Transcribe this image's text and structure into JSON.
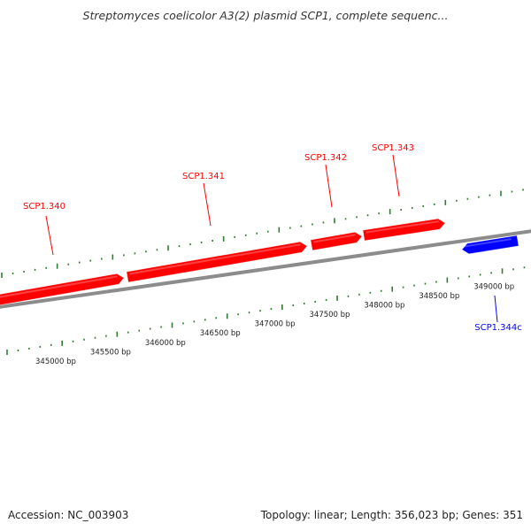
{
  "title": "Streptomyces coelicolor A3(2) plasmid SCP1, complete sequenc...",
  "footer": {
    "accession": "Accession: NC_003903",
    "summary": "Topology: linear; Length: 356,023 bp; Genes: 351"
  },
  "colors": {
    "forward_gene": "#ff0000",
    "reverse_gene": "#0000ff",
    "backbone": "#8c8c8c",
    "ticks": "#2e7d2e",
    "text": "#222222"
  },
  "scale_labels": [
    {
      "bp": 345000,
      "text": "345000 bp"
    },
    {
      "bp": 345500,
      "text": "345500 bp"
    },
    {
      "bp": 346000,
      "text": "346000 bp"
    },
    {
      "bp": 346500,
      "text": "346500 bp"
    },
    {
      "bp": 347000,
      "text": "347000 bp"
    },
    {
      "bp": 347500,
      "text": "347500 bp"
    },
    {
      "bp": 348000,
      "text": "348000 bp"
    },
    {
      "bp": 348500,
      "text": "348500 bp"
    },
    {
      "bp": 349000,
      "text": "349000 bp"
    }
  ],
  "genes": [
    {
      "name": "SCP1.340",
      "strand": "forward"
    },
    {
      "name": "SCP1.341",
      "strand": "forward"
    },
    {
      "name": "SCP1.342",
      "strand": "forward"
    },
    {
      "name": "SCP1.343",
      "strand": "forward"
    },
    {
      "name": "SCP1.344c",
      "strand": "reverse"
    }
  ]
}
